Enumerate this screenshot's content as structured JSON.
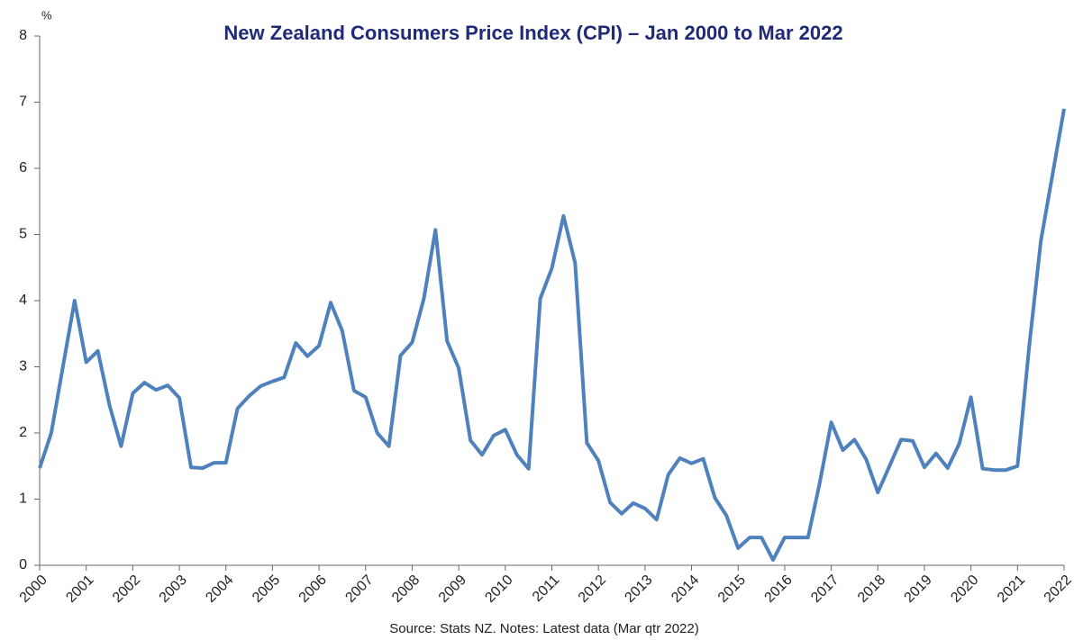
{
  "chart_data": {
    "type": "line",
    "title": "New Zealand Consumers Price Index (CPI) – Jan 2000 to Mar 2022",
    "y_label": "%",
    "source": "Source: Stats NZ. Notes: Latest data (Mar qtr 2022)",
    "color": "#4f81bd",
    "x": [
      2000,
      2000.25,
      2000.5,
      2000.75,
      2001,
      2001.25,
      2001.5,
      2001.75,
      2002,
      2002.25,
      2002.5,
      2002.75,
      2003,
      2003.25,
      2003.5,
      2003.75,
      2004,
      2004.25,
      2004.5,
      2004.75,
      2005,
      2005.25,
      2005.5,
      2005.75,
      2006,
      2006.25,
      2006.5,
      2006.75,
      2007,
      2007.25,
      2007.5,
      2007.75,
      2008,
      2008.25,
      2008.5,
      2008.75,
      2009,
      2009.25,
      2009.5,
      2009.75,
      2010,
      2010.25,
      2010.5,
      2010.75,
      2011,
      2011.25,
      2011.5,
      2011.75,
      2012,
      2012.25,
      2012.5,
      2012.75,
      2013,
      2013.25,
      2013.5,
      2013.75,
      2014,
      2014.25,
      2014.5,
      2014.75,
      2015,
      2015.25,
      2015.5,
      2015.75,
      2016,
      2016.25,
      2016.5,
      2016.75,
      2017,
      2017.25,
      2017.5,
      2017.75,
      2018,
      2018.25,
      2018.5,
      2018.75,
      2019,
      2019.25,
      2019.5,
      2019.75,
      2020,
      2020.25,
      2020.5,
      2020.75,
      2021,
      2021.25,
      2021.5,
      2021.75,
      2022
    ],
    "values": [
      1.47,
      2.0,
      3.0,
      4.0,
      3.07,
      3.24,
      2.42,
      1.8,
      2.6,
      2.76,
      2.65,
      2.72,
      2.53,
      1.48,
      1.47,
      1.55,
      1.55,
      2.37,
      2.56,
      2.71,
      2.78,
      2.84,
      3.36,
      3.16,
      3.32,
      3.97,
      3.54,
      2.64,
      2.54,
      2.0,
      1.8,
      3.17,
      3.37,
      4.03,
      5.07,
      3.39,
      2.98,
      1.89,
      1.67,
      1.96,
      2.05,
      1.67,
      1.46,
      4.03,
      4.49,
      5.28,
      4.57,
      1.85,
      1.58,
      0.95,
      0.78,
      0.94,
      0.86,
      0.69,
      1.37,
      1.62,
      1.54,
      1.61,
      1.02,
      0.75,
      0.26,
      0.42,
      0.42,
      0.08,
      0.42,
      0.42,
      0.42,
      1.24,
      2.16,
      1.74,
      1.9,
      1.6,
      1.1,
      1.5,
      1.9,
      1.88,
      1.48,
      1.69,
      1.47,
      1.84,
      2.54,
      1.46,
      1.44,
      1.44,
      1.5,
      3.3,
      4.9,
      5.9,
      6.9
    ],
    "xlim": [
      2000,
      2022
    ],
    "xticks": [
      2000,
      2001,
      2002,
      2003,
      2004,
      2005,
      2006,
      2007,
      2008,
      2009,
      2010,
      2011,
      2012,
      2013,
      2014,
      2015,
      2016,
      2017,
      2018,
      2019,
      2020,
      2021,
      2022
    ],
    "ylim": [
      0,
      8
    ],
    "yticks": [
      0,
      1,
      2,
      3,
      4,
      5,
      6,
      7,
      8
    ],
    "grid": false
  }
}
